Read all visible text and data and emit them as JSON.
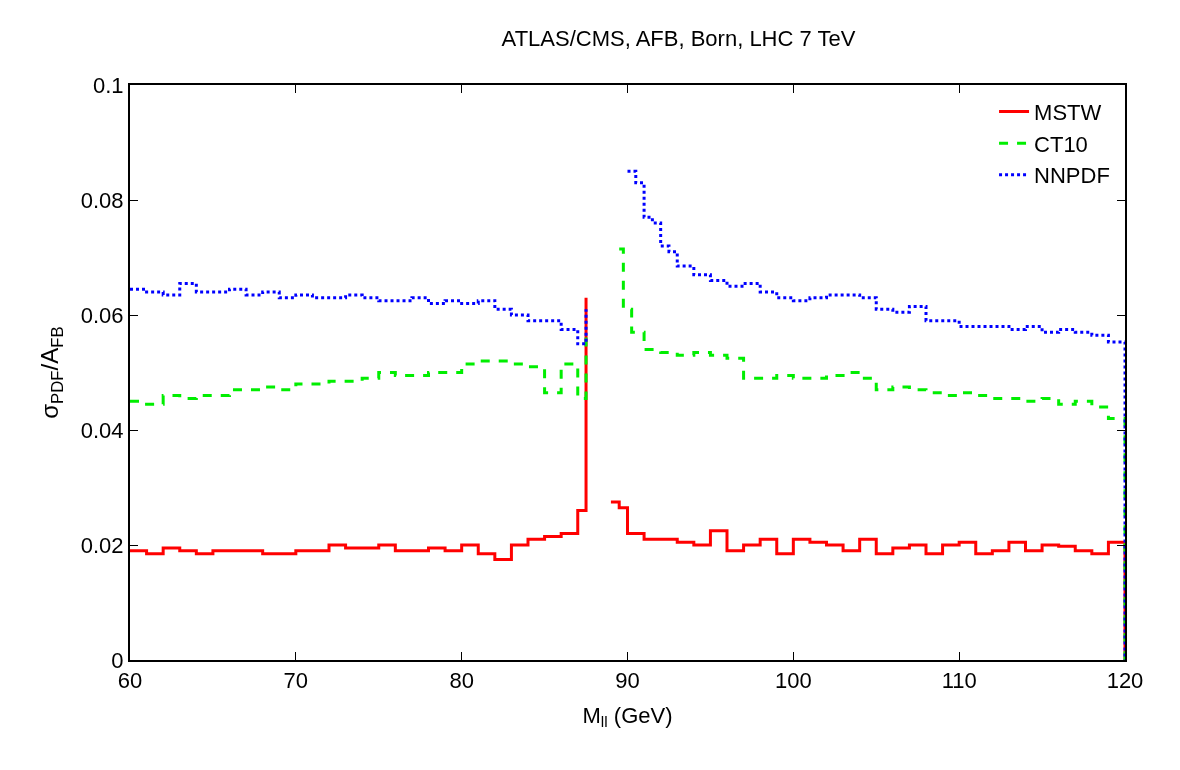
{
  "chart_data": {
    "type": "step",
    "title": "ATLAS/CMS, AFB, Born, LHC 7 TeV",
    "xlabel": "M$_{ll}$ (GeV)",
    "ylabel": "σ$_{PDF}$/A$_{FB}$",
    "xlim": [
      60,
      120
    ],
    "xticks": [
      60,
      70,
      80,
      90,
      100,
      110,
      120
    ],
    "ylim": [
      0,
      0.1
    ],
    "yticks": [
      0,
      0.02,
      0.04,
      0.06,
      0.08,
      0.1
    ],
    "legend": "top right",
    "series": [
      {
        "name": "MSTW",
        "color": "#ff0000",
        "line_style": "solid",
        "x": [
          60,
          61,
          62,
          63,
          64,
          65,
          66,
          67,
          68,
          69,
          70,
          71,
          72,
          73,
          74,
          75,
          76,
          77,
          78,
          79,
          80,
          81,
          82,
          83,
          84,
          85,
          86,
          87,
          87.5,
          87.75,
          89,
          89.5,
          90,
          91,
          92,
          93,
          94,
          95,
          96,
          97,
          98,
          99,
          100,
          101,
          102,
          103,
          104,
          105,
          106,
          107,
          108,
          109,
          110,
          111,
          112,
          113,
          114,
          115,
          116,
          117,
          118,
          119,
          120
        ],
        "values": [
          0.019,
          0.0185,
          0.0195,
          0.019,
          0.0185,
          0.019,
          0.019,
          0.019,
          0.0185,
          0.0185,
          0.019,
          0.019,
          0.02,
          0.0195,
          0.0195,
          0.02,
          0.019,
          0.019,
          0.0195,
          0.019,
          0.02,
          0.0185,
          0.0175,
          0.02,
          0.021,
          0.0215,
          0.022,
          0.026,
          0.063,
          null,
          0.0275,
          0.0265,
          0.022,
          0.021,
          0.021,
          0.0205,
          0.02,
          0.0225,
          0.019,
          0.02,
          0.021,
          0.0185,
          0.021,
          0.0205,
          0.02,
          0.019,
          0.021,
          0.0185,
          0.0195,
          0.02,
          0.0185,
          0.02,
          0.0205,
          0.0185,
          0.019,
          0.0205,
          0.019,
          0.02,
          0.0198,
          0.019,
          0.0185,
          0.0205,
          0
        ]
      },
      {
        "name": "CT10",
        "color": "#00ee00",
        "line_style": "dashed",
        "x": [
          60,
          61,
          62,
          63,
          64,
          65,
          66,
          67,
          68,
          69,
          70,
          71,
          72,
          73,
          74,
          75,
          76,
          77,
          78,
          79,
          80,
          81,
          82,
          83,
          84,
          85,
          86,
          87,
          87.5,
          87.75,
          89.5,
          89.75,
          90.25,
          91,
          92,
          93,
          94,
          95,
          96,
          97,
          98,
          99,
          100,
          101,
          102,
          103,
          104,
          105,
          106,
          107,
          108,
          109,
          110,
          111,
          112,
          113,
          114,
          115,
          116,
          117,
          118,
          119,
          120
        ],
        "values": [
          0.045,
          0.0445,
          0.046,
          0.0455,
          0.046,
          0.046,
          0.047,
          0.047,
          0.0475,
          0.047,
          0.048,
          0.048,
          0.0485,
          0.0485,
          0.049,
          0.05,
          0.0495,
          0.0495,
          0.05,
          0.05,
          0.0515,
          0.052,
          0.052,
          0.0515,
          0.051,
          0.0465,
          0.0515,
          0.0455,
          0.057,
          null,
          0.0715,
          0.061,
          0.057,
          0.054,
          0.0535,
          0.053,
          0.0535,
          0.053,
          0.0525,
          0.049,
          0.049,
          0.0495,
          0.049,
          0.049,
          0.0495,
          0.05,
          0.049,
          0.047,
          0.0475,
          0.047,
          0.0465,
          0.046,
          0.0465,
          0.046,
          0.0455,
          0.0455,
          0.045,
          0.0455,
          0.0445,
          0.045,
          0.044,
          0.042,
          0
        ]
      },
      {
        "name": "NNPDF",
        "color": "#0000ff",
        "line_style": "dotted",
        "x": [
          60,
          61,
          62,
          63,
          64,
          65,
          66,
          67,
          68,
          69,
          70,
          71,
          72,
          73,
          74,
          75,
          76,
          77,
          78,
          79,
          80,
          81,
          82,
          83,
          84,
          85,
          86,
          87,
          87.5,
          87.75,
          90,
          90.5,
          91,
          91.5,
          92,
          92.5,
          93,
          94,
          95,
          96,
          97,
          98,
          99,
          100,
          101,
          102,
          103,
          104,
          105,
          106,
          107,
          108,
          109,
          110,
          111,
          112,
          113,
          114,
          115,
          116,
          117,
          118,
          119,
          120
        ],
        "values": [
          0.0645,
          0.064,
          0.0635,
          0.0655,
          0.064,
          0.064,
          0.0645,
          0.0635,
          0.064,
          0.063,
          0.0635,
          0.063,
          0.063,
          0.0635,
          0.063,
          0.0625,
          0.0625,
          0.063,
          0.062,
          0.0625,
          0.062,
          0.0625,
          0.061,
          0.06,
          0.059,
          0.059,
          0.0575,
          0.055,
          0.061,
          null,
          0.085,
          0.083,
          0.077,
          0.076,
          0.072,
          0.071,
          0.0685,
          0.067,
          0.066,
          0.065,
          0.0655,
          0.064,
          0.063,
          0.0625,
          0.063,
          0.0635,
          0.0635,
          0.063,
          0.061,
          0.0605,
          0.0615,
          0.059,
          0.059,
          0.058,
          0.058,
          0.058,
          0.0575,
          0.058,
          0.057,
          0.0575,
          0.057,
          0.0565,
          0.0553,
          0
        ]
      }
    ]
  }
}
